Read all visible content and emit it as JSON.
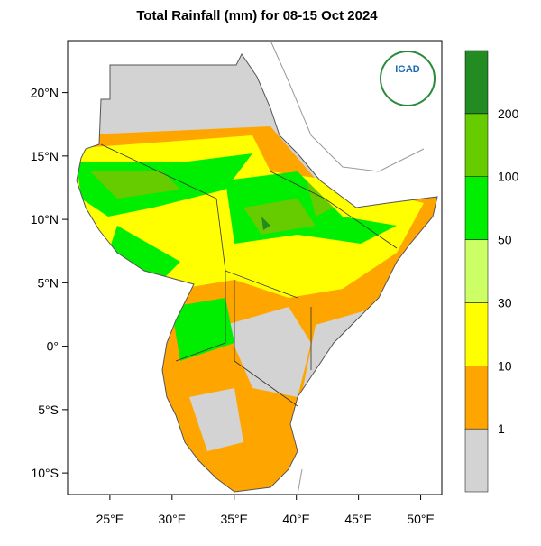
{
  "title": "Total Rainfall (mm) for 08-15 Oct 2024",
  "map": {
    "xlim": [
      21.6,
      51.7
    ],
    "ylim": [
      -11.7,
      24.1
    ],
    "xticks": [
      {
        "value": 25,
        "label": "25°E"
      },
      {
        "value": 30,
        "label": "30°E"
      },
      {
        "value": 35,
        "label": "35°E"
      },
      {
        "value": 40,
        "label": "40°E"
      },
      {
        "value": 45,
        "label": "45°E"
      },
      {
        "value": 50,
        "label": "50°E"
      }
    ],
    "yticks": [
      {
        "value": 20,
        "label": "20°N"
      },
      {
        "value": 15,
        "label": "15°N"
      },
      {
        "value": 10,
        "label": "10°N"
      },
      {
        "value": 5,
        "label": "5°N"
      },
      {
        "value": 0,
        "label": "0°"
      },
      {
        "value": -5,
        "label": "5°S"
      },
      {
        "value": -10,
        "label": "10°S"
      }
    ]
  },
  "colorbar": {
    "levels": [
      1,
      10,
      30,
      50,
      100,
      200
    ],
    "colors": [
      "#d3d3d3",
      "#ffa500",
      "#ffff00",
      "#ccff66",
      "#00ee00",
      "#66cc00",
      "#228b22"
    ]
  },
  "logo": "IGAD"
}
